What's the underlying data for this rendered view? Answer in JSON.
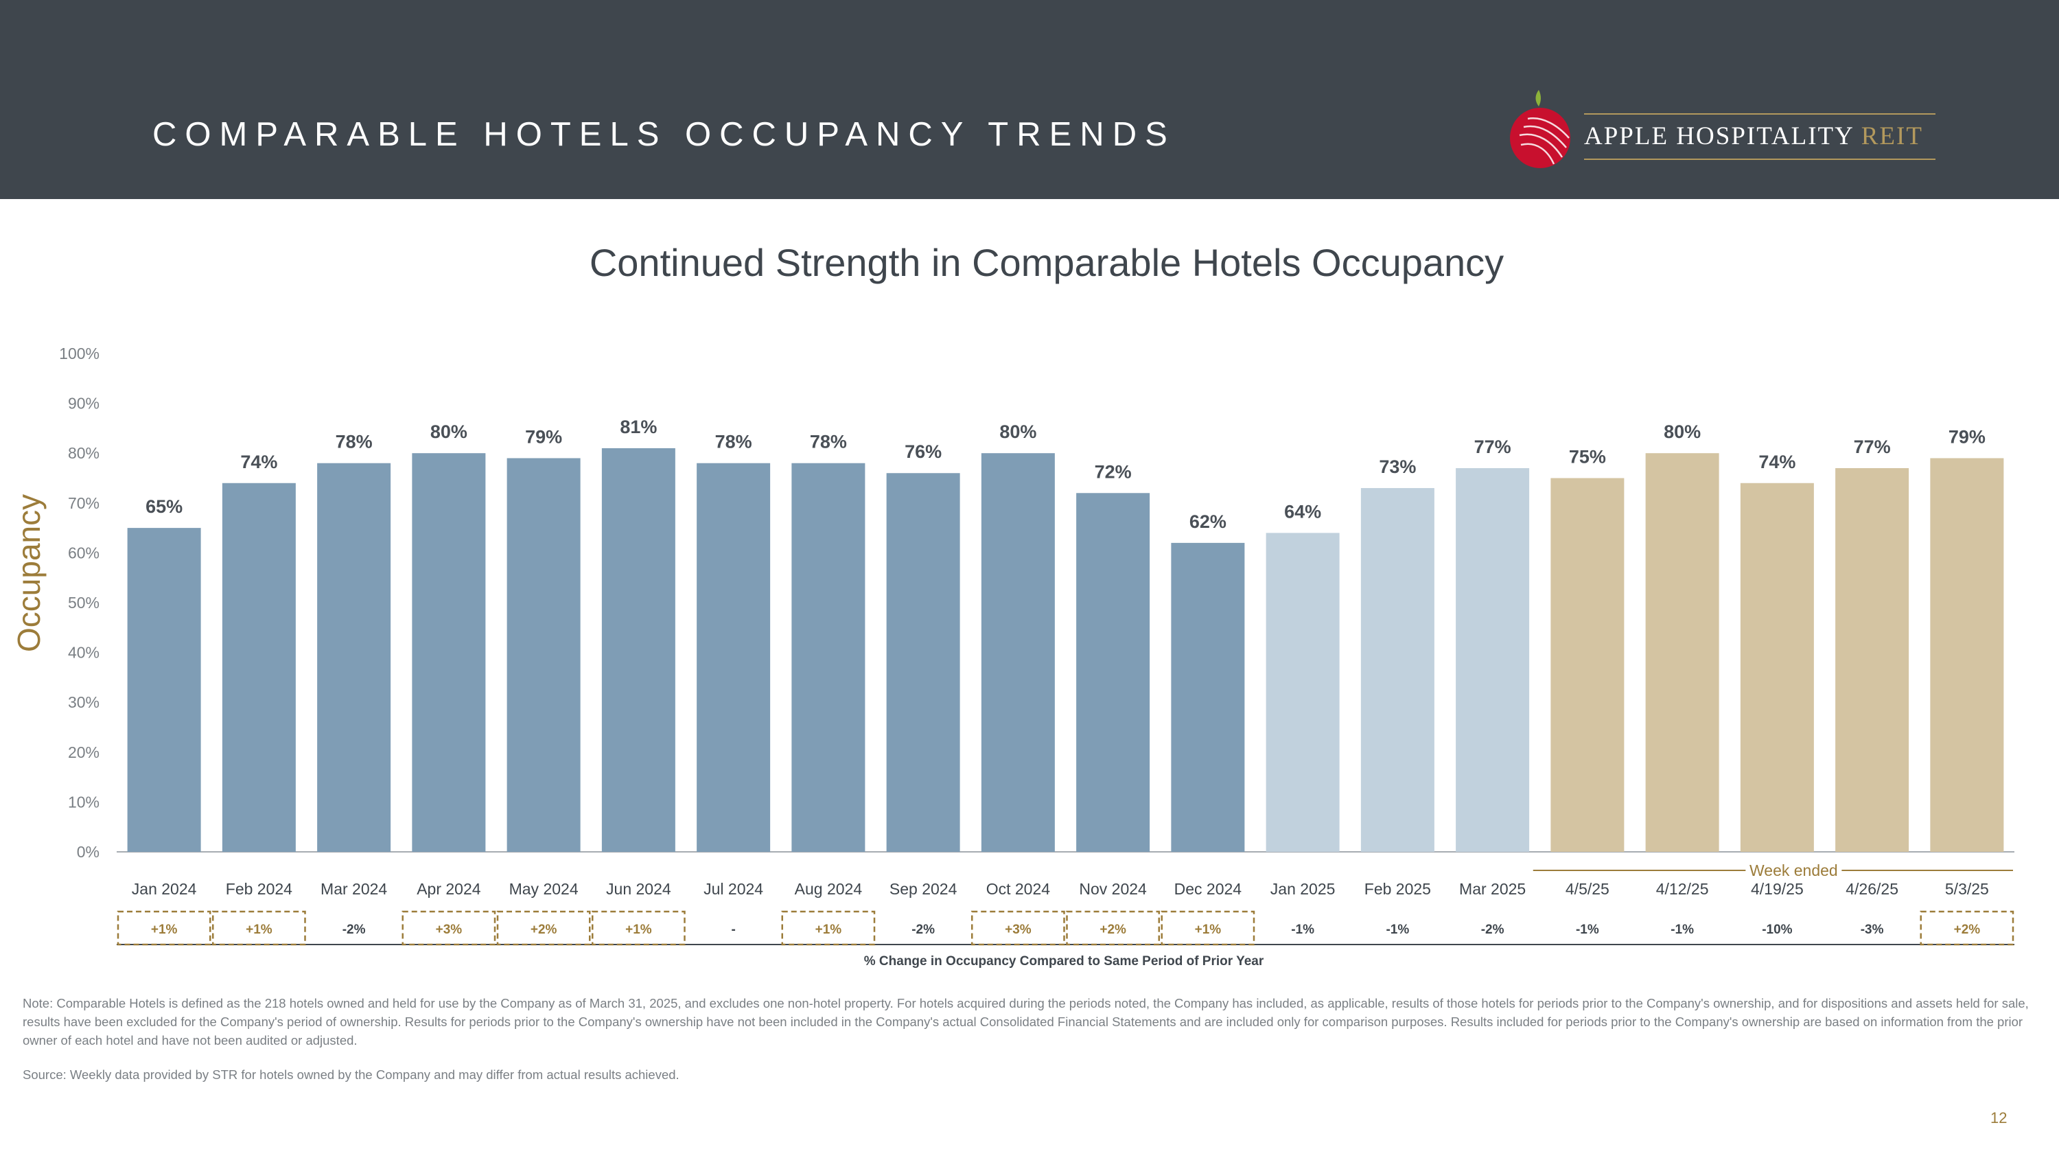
{
  "header": {
    "title": "COMPARABLE HOTELS OCCUPANCY TRENDS",
    "logo_text": "APPLE HOSPITALITY",
    "logo_text_accent": "REIT"
  },
  "chart_data": {
    "type": "bar",
    "title": "Continued Strength in Comparable Hotels Occupancy",
    "ylabel": "Occupancy",
    "ylim": [
      0,
      100
    ],
    "yticks": [
      "0%",
      "10%",
      "20%",
      "30%",
      "40%",
      "50%",
      "60%",
      "70%",
      "80%",
      "90%",
      "100%"
    ],
    "categories": [
      "Jan 2024",
      "Feb 2024",
      "Mar 2024",
      "Apr 2024",
      "May 2024",
      "Jun 2024",
      "Jul 2024",
      "Aug 2024",
      "Sep 2024",
      "Oct 2024",
      "Nov 2024",
      "Dec 2024",
      "Jan 2025",
      "Feb 2025",
      "Mar 2025",
      "4/5/25",
      "4/12/25",
      "4/19/25",
      "4/26/25",
      "5/3/25"
    ],
    "values": [
      65,
      74,
      78,
      80,
      79,
      81,
      78,
      78,
      76,
      80,
      72,
      62,
      64,
      73,
      77,
      75,
      80,
      74,
      77,
      79
    ],
    "value_labels": [
      "65%",
      "74%",
      "78%",
      "80%",
      "79%",
      "81%",
      "78%",
      "78%",
      "76%",
      "80%",
      "72%",
      "62%",
      "64%",
      "73%",
      "77%",
      "75%",
      "80%",
      "74%",
      "77%",
      "79%"
    ],
    "bar_groups": [
      "2024",
      "2024",
      "2024",
      "2024",
      "2024",
      "2024",
      "2024",
      "2024",
      "2024",
      "2024",
      "2024",
      "2024",
      "2025",
      "2025",
      "2025",
      "week",
      "week",
      "week",
      "week",
      "week"
    ],
    "colors": {
      "2024": "#7f9db5",
      "2025": "#c1d1dd",
      "week": "#d4c4a2",
      "accent": "#9c7c3a"
    },
    "week_bracket_label": "Week ended",
    "changes": [
      "+1%",
      "+1%",
      "-2%",
      "+3%",
      "+2%",
      "+1%",
      "-",
      "+1%",
      "-2%",
      "+3%",
      "+2%",
      "+1%",
      "-1%",
      "-1%",
      "-2%",
      "-1%",
      "-1%",
      "-10%",
      "-3%",
      "+2%"
    ],
    "changes_boxed": [
      true,
      true,
      false,
      true,
      true,
      true,
      false,
      true,
      false,
      true,
      true,
      true,
      false,
      false,
      false,
      false,
      false,
      false,
      false,
      true
    ],
    "changes_label": "% Change in Occupancy Compared to Same Period of Prior Year",
    "grid": false,
    "legend": "none"
  },
  "footer": {
    "note": "Note: Comparable Hotels is defined as the 218 hotels owned and held for use by the Company as of March 31, 2025, and excludes one non-hotel property. For hotels acquired during the periods noted, the Company has included, as applicable, results of those hotels for periods prior to the Company's ownership, and for dispositions and assets held for sale, results have been excluded for the Company's period of ownership. Results for periods prior to the Company's ownership have not been included in the Company's actual Consolidated Financial Statements and are included only for comparison purposes. Results included for periods prior to the Company's ownership are based on information from the prior owner of each hotel and have not been audited or adjusted.",
    "source": "Source:  Weekly data provided by STR for hotels owned by the Company and may differ from actual results achieved.",
    "page_number": "12"
  }
}
